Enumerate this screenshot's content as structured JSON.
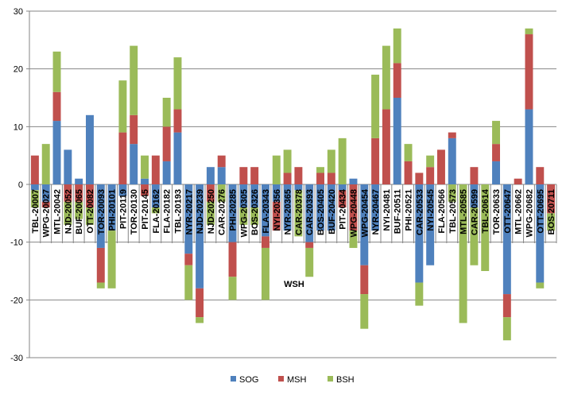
{
  "chart_data": {
    "type": "bar",
    "stacked": true,
    "title": "",
    "xlabel": "",
    "ylabel": "",
    "ylim": [
      -30,
      30
    ],
    "yticks": [
      30,
      20,
      10,
      0,
      -10,
      -20,
      -30
    ],
    "grid": true,
    "legend_position": "bottom",
    "annotation": "WSH",
    "categories": [
      "TBL-20007",
      "WPG-20027",
      "MTL-20042",
      "NJD-20052",
      "BUF-20065",
      "OTT-20082",
      "TOR-20093",
      "PHI-20101",
      "PIT-20119",
      "TOR-20130",
      "PIT-20145",
      "FLA-20162",
      "FLA-20182",
      "TBL-20193",
      "NYR-20217",
      "NJD-20239",
      "NJD-20250",
      "CAR-20276",
      "PHI-20285",
      "WPG-20305",
      "BOS-20326",
      "FLA-20343",
      "NYI-20356",
      "NYR-20365",
      "CAR-20378",
      "CAR-20393",
      "BOS-20405",
      "BUF-20420",
      "PIT-20434",
      "WPG-20448",
      "WPG-20454",
      "NYR-20467",
      "NYI-20481",
      "BUF-20511",
      "PHI-20521",
      "CAR-20533",
      "NYI-20545",
      "FLA-20566",
      "TBL-20573",
      "MTL-20585",
      "CAR-20599",
      "TBL-20614",
      "TOR-20633",
      "OTT-20647",
      "MTL-20662",
      "WPG-20682",
      "OTT-20695",
      "BOS-20711"
    ],
    "series": [
      {
        "name": "SOG",
        "color": "#4F81BD",
        "values": [
          -1,
          -3,
          11,
          6,
          1,
          12,
          -11,
          -8,
          -2,
          7,
          1,
          -4,
          4,
          9,
          -12,
          -18,
          3,
          3,
          -10,
          -4,
          -4,
          -9,
          -3,
          -8,
          -1,
          -10,
          -8,
          -8,
          -1,
          1,
          -14,
          -8,
          0,
          15,
          0,
          -17,
          -14,
          0,
          8,
          0,
          -4,
          0,
          4,
          -19,
          0,
          13,
          -17,
          0
        ]
      },
      {
        "name": "MSH",
        "color": "#C0504D",
        "values": [
          5,
          -1,
          5,
          -3,
          -3,
          -4,
          -6,
          0,
          9,
          5,
          -2,
          5,
          6,
          4,
          -2,
          -5,
          -3,
          2,
          -6,
          3,
          3,
          -2,
          -5,
          2,
          3,
          -1,
          2,
          2,
          -3,
          -8,
          -5,
          8,
          13,
          6,
          4,
          2,
          3,
          6,
          1,
          0,
          3,
          0,
          3,
          -4,
          1,
          13,
          3,
          -5
        ]
      },
      {
        "name": "BSH",
        "color": "#9BBB59",
        "values": [
          -3,
          7,
          7,
          -4,
          -3,
          -3,
          -1,
          -10,
          9,
          12,
          4,
          -1,
          5,
          9,
          -6,
          -1,
          -4,
          -3,
          -4,
          -3,
          -3,
          -9,
          5,
          4,
          -8,
          -5,
          1,
          4,
          8,
          -3,
          -6,
          11,
          11,
          6,
          3,
          -4,
          2,
          0,
          -3,
          -24,
          -10,
          -15,
          4,
          -4,
          0,
          1,
          -1,
          -3
        ]
      }
    ]
  }
}
